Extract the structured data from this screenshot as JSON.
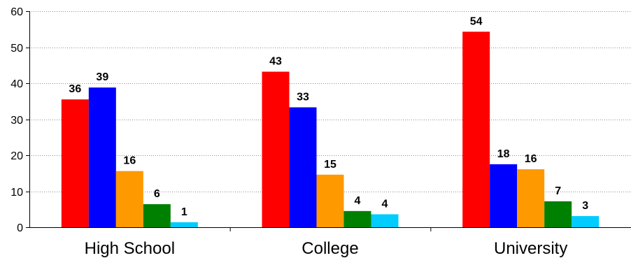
{
  "chart_data": {
    "type": "bar",
    "categories": [
      "High School",
      "College",
      "University"
    ],
    "series": [
      {
        "color": "#ff0000",
        "values": [
          35.5,
          43.2,
          54.3
        ],
        "labels": [
          "36",
          "43",
          "54"
        ]
      },
      {
        "color": "#0000ff",
        "values": [
          38.8,
          33.3,
          17.5
        ],
        "labels": [
          "39",
          "33",
          "18"
        ]
      },
      {
        "color": "#ff9900",
        "values": [
          15.6,
          14.6,
          16.1
        ],
        "labels": [
          "16",
          "15",
          "16"
        ]
      },
      {
        "color": "#008000",
        "values": [
          6.4,
          4.5,
          7.2
        ],
        "labels": [
          "6",
          "4",
          "7"
        ]
      },
      {
        "color": "#00ccff",
        "values": [
          1.4,
          3.6,
          3.1
        ],
        "labels": [
          "1",
          "4",
          "3"
        ]
      }
    ],
    "yticks": [
      "0",
      "10",
      "20",
      "30",
      "40",
      "50",
      "60"
    ],
    "ylim": [
      0,
      60
    ],
    "grid": true,
    "grid_style": "dotted",
    "legend": "none"
  }
}
